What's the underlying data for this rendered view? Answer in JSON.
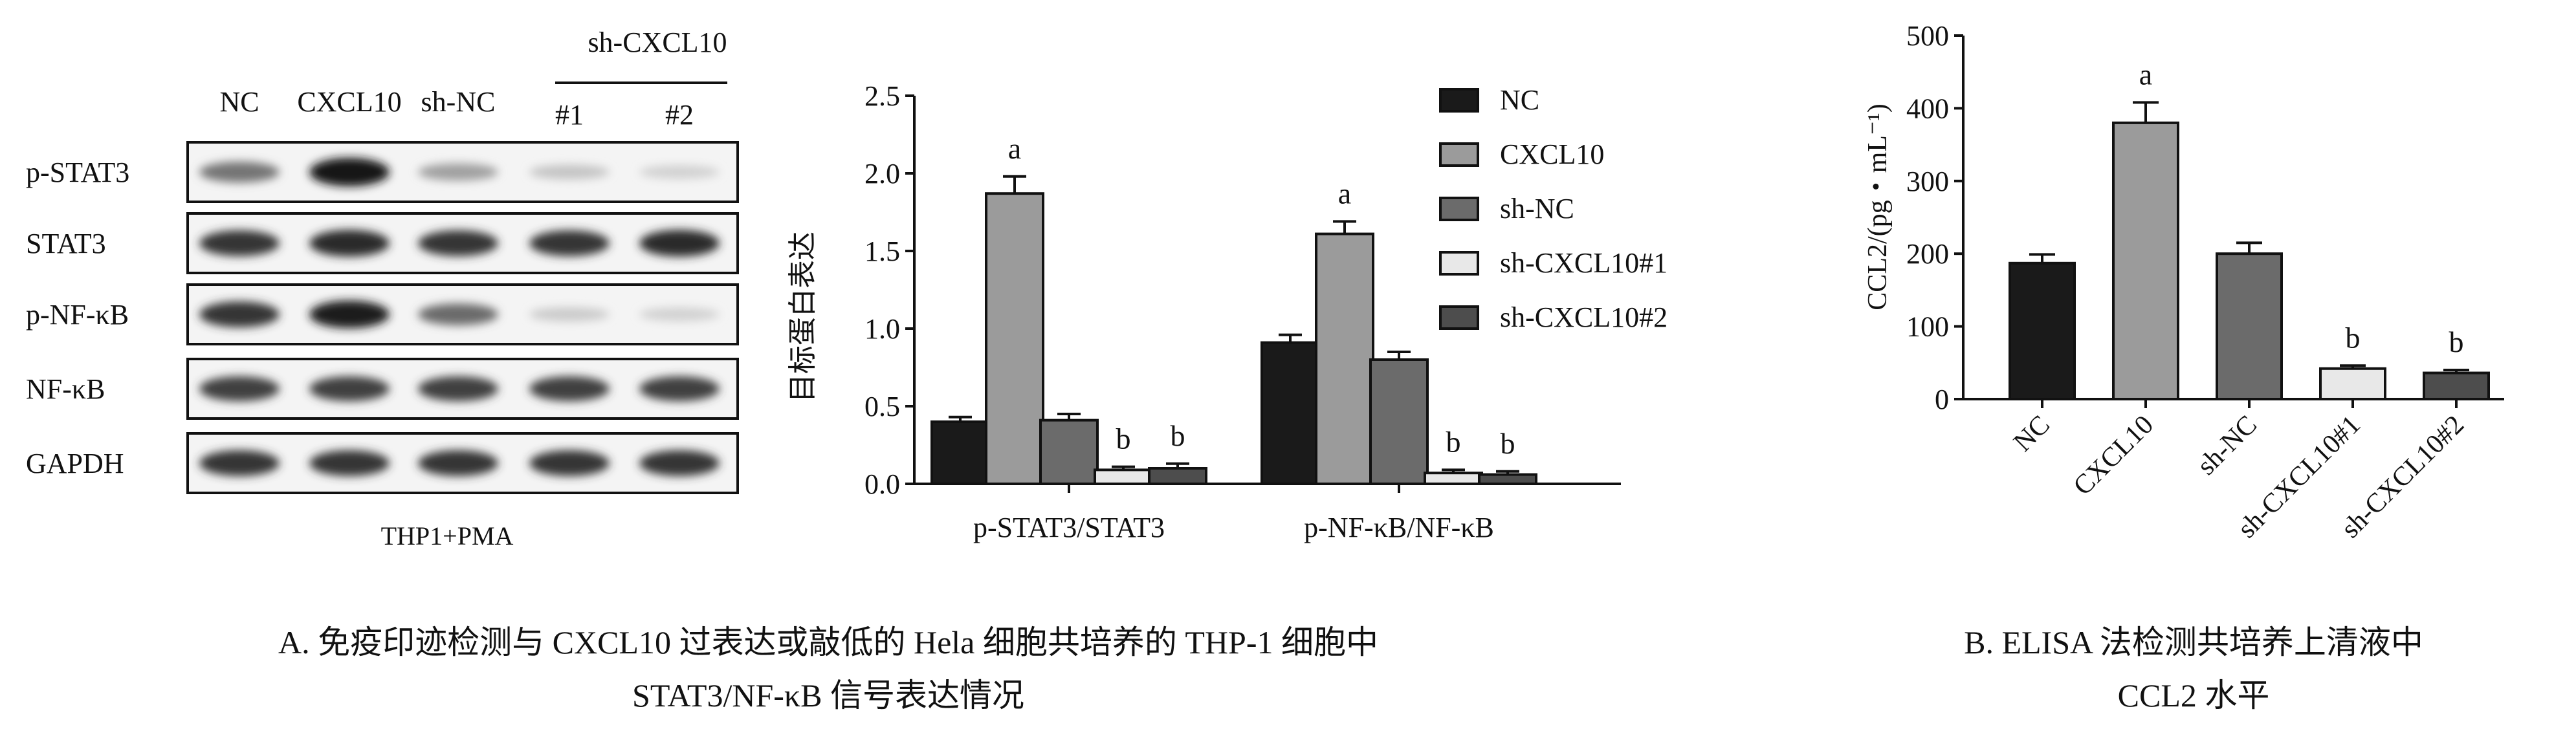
{
  "blot": {
    "lanes": [
      "NC",
      "CXCL10",
      "sh-NC",
      "#1",
      "#2"
    ],
    "group_label": "sh-CXCL10",
    "rows": [
      "p-STAT3",
      "STAT3",
      "p-NF-κB",
      "NF-κB",
      "GAPDH"
    ],
    "intensity": [
      [
        0.55,
        1.0,
        0.35,
        0.18,
        0.12
      ],
      [
        0.85,
        0.9,
        0.85,
        0.85,
        0.9
      ],
      [
        0.85,
        0.95,
        0.6,
        0.15,
        0.12
      ],
      [
        0.8,
        0.8,
        0.8,
        0.8,
        0.8
      ],
      [
        0.85,
        0.85,
        0.85,
        0.85,
        0.85
      ]
    ],
    "cell_label": "THP1+PMA"
  },
  "chart_data": [
    {
      "type": "bar",
      "ylabel": "目标蛋白表达",
      "ylim": [
        0,
        2.5
      ],
      "yticks": [
        "0.0",
        "0.5",
        "1.0",
        "1.5",
        "2.0",
        "2.5"
      ],
      "categories": [
        "p-STAT3/STAT3",
        "p-NF-κB/NF-κB"
      ],
      "series": [
        {
          "name": "NC",
          "color": "#1a1a1a",
          "values": [
            0.4,
            0.91
          ],
          "err": [
            0.03,
            0.05
          ],
          "sig": [
            "",
            ""
          ]
        },
        {
          "name": "CXCL10",
          "color": "#9b9b9b",
          "values": [
            1.87,
            1.61
          ],
          "err": [
            0.11,
            0.08
          ],
          "sig": [
            "a",
            "a"
          ]
        },
        {
          "name": "sh-NC",
          "color": "#6b6b6b",
          "values": [
            0.41,
            0.8
          ],
          "err": [
            0.04,
            0.05
          ],
          "sig": [
            "",
            ""
          ]
        },
        {
          "name": "sh-CXCL10#1",
          "color": "#e8e8e8",
          "values": [
            0.09,
            0.07
          ],
          "err": [
            0.02,
            0.02
          ],
          "sig": [
            "b",
            "b"
          ]
        },
        {
          "name": "sh-CXCL10#2",
          "color": "#4d4d4d",
          "values": [
            0.1,
            0.06
          ],
          "err": [
            0.03,
            0.02
          ],
          "sig": [
            "b",
            "b"
          ]
        }
      ],
      "legend": "right"
    },
    {
      "type": "bar",
      "ylabel": "CCL2/(pg・mL⁻¹)",
      "ylim": [
        0,
        500
      ],
      "yticks": [
        "0",
        "100",
        "200",
        "300",
        "400",
        "500"
      ],
      "categories": [
        "NC",
        "CXCL10",
        "sh-NC",
        "sh-CXCL10#1",
        "sh-CXCL10#2"
      ],
      "values": [
        187,
        380,
        200,
        42,
        36
      ],
      "err": [
        12,
        28,
        15,
        4,
        4
      ],
      "colors": [
        "#1a1a1a",
        "#9b9b9b",
        "#6b6b6b",
        "#e8e8e8",
        "#4d4d4d"
      ],
      "sig": [
        "",
        "a",
        "",
        "b",
        "b"
      ]
    }
  ],
  "captions": {
    "a_line1": "A. 免疫印迹检测与 CXCL10 过表达或敲低的 Hela 细胞共培养的 THP-1 细胞中",
    "a_line2": "STAT3/NF-κB 信号表达情况",
    "b_line1": "B. ELISA 法检测共培养上清液中",
    "b_line2": "CCL2 水平"
  }
}
